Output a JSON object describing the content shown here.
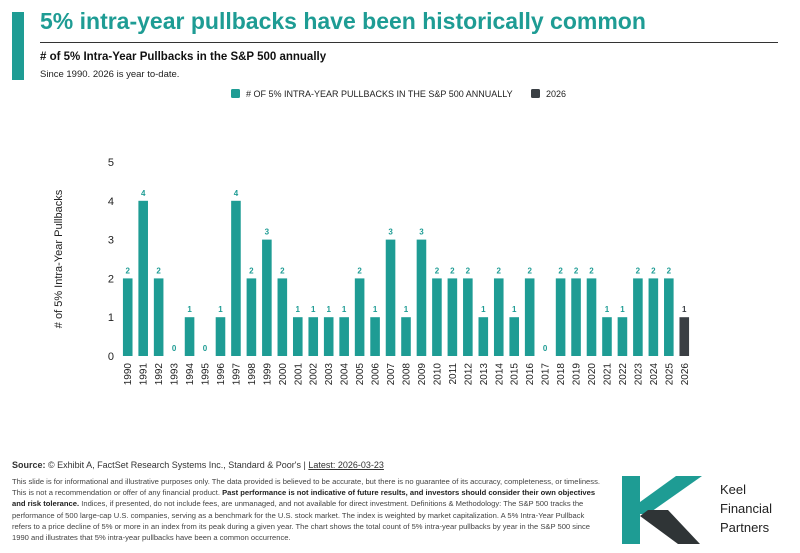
{
  "header": {
    "title": "5% intra-year pullbacks have been historically common",
    "subtitle": "# of 5% Intra-Year Pullbacks in the S&P 500 annually",
    "note": "Since 1990. 2026 is year to-date."
  },
  "chart_data": {
    "type": "bar",
    "categories": [
      "1990",
      "1991",
      "1992",
      "1993",
      "1994",
      "1995",
      "1996",
      "1997",
      "1998",
      "1999",
      "2000",
      "2001",
      "2002",
      "2003",
      "2004",
      "2005",
      "2006",
      "2007",
      "2008",
      "2009",
      "2010",
      "2011",
      "2012",
      "2013",
      "2014",
      "2015",
      "2016",
      "2017",
      "2018",
      "2019",
      "2020",
      "2021",
      "2022",
      "2023",
      "2024",
      "2025",
      "2026"
    ],
    "values": [
      2,
      4,
      2,
      0,
      1,
      0,
      1,
      4,
      2,
      3,
      2,
      1,
      1,
      1,
      1,
      2,
      1,
      3,
      1,
      3,
      2,
      2,
      2,
      1,
      2,
      1,
      2,
      0,
      2,
      2,
      2,
      1,
      1,
      2,
      2,
      2,
      1
    ],
    "series": [
      {
        "name": "# OF 5% INTRA-YEAR PULLBACKS IN THE S&P 500 ANNUALLY",
        "color": "#1e9c94"
      },
      {
        "name": "2026",
        "color": "#3a3f44"
      }
    ],
    "highlight_category": "2026",
    "ylabel": "# of 5% Intra-Year Pullbacks",
    "xlabel": "",
    "ylim": [
      0,
      5
    ],
    "yticks": [
      0,
      1,
      2,
      3,
      4,
      5
    ],
    "grid": false,
    "legend": "top-center",
    "data_labels": true
  },
  "footer": {
    "source_label": "Source:",
    "source_text": "© Exhibit A, FactSet Research Systems Inc., Standard & Poor's |",
    "source_link": "Latest: 2026-03-23",
    "disclaimer_1": "This slide is for informational and illustrative purposes only. The data provided is believed to be accurate, but there is no guarantee of its accuracy, completeness, or timeliness. This is not a recommendation or offer of any financial product.",
    "disclaimer_bold": "Past performance is not indicative of future results, and investors should consider their own objectives and risk tolerance.",
    "disclaimer_2": "Indices, if presented, do not include fees, are unmanaged, and not available for direct investment. Definitions & Methodology: The S&P 500 tracks the performance of 500 large-cap U.S. companies, serving as a benchmark for the U.S. stock market. The index is weighted by market capitalization. A 5% Intra-Year Pullback refers to a price decline of 5% or more in an index from its peak during a given year. The chart shows the total count of 5% intra-year pullbacks by year in the S&P 500 since 1990 and illustrates that 5% intra-year pullbacks have been a common occurrence."
  },
  "logo": {
    "line1": "Keel",
    "line2": "Financial",
    "line3": "Partners",
    "colors": {
      "teal": "#1e9c94",
      "dark": "#2f3436"
    }
  }
}
